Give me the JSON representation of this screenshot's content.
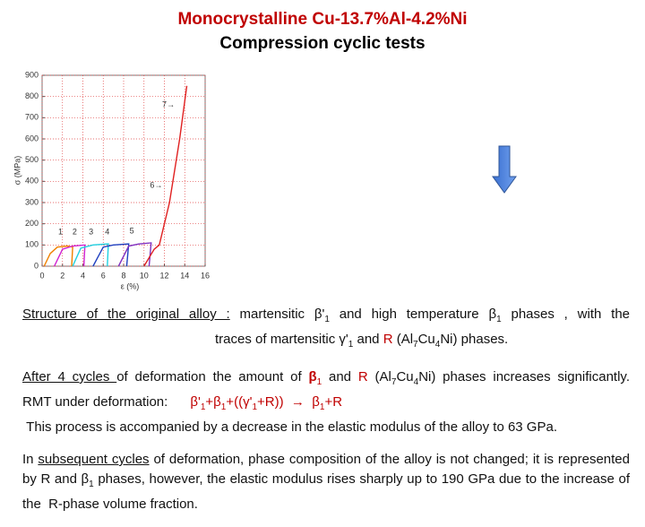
{
  "title": [
    "Monocrystalline Cu-13.7%Al-4.2%Ni",
    "Compression cyclic tests"
  ],
  "chart_data": {
    "type": "line",
    "xlabel": "ε (%)",
    "ylabel": "σ (MPa)",
    "xlim": [
      0,
      16
    ],
    "xticks": [
      0,
      2,
      4,
      6,
      8,
      10,
      12,
      14,
      16
    ],
    "ylim": [
      0,
      900
    ],
    "yticks": [
      0,
      100,
      200,
      300,
      400,
      500,
      600,
      700,
      800,
      900
    ],
    "grid": true,
    "grid_color": "#e04040",
    "series": [
      {
        "color": "#f08000",
        "x": [
          0.2,
          0.8,
          1.5,
          2.5,
          3.0,
          2.9
        ],
        "values": [
          0,
          60,
          90,
          95,
          90,
          0
        ]
      },
      {
        "color": "#d020d0",
        "x": [
          1.2,
          2.0,
          3.0,
          4.2,
          4.1
        ],
        "values": [
          0,
          80,
          95,
          100,
          0
        ]
      },
      {
        "color": "#20d0e0",
        "x": [
          3.0,
          3.8,
          5.0,
          6.5,
          6.4
        ],
        "values": [
          0,
          85,
          100,
          105,
          0
        ]
      },
      {
        "color": "#2040c0",
        "x": [
          5.0,
          6.0,
          7.0,
          8.5,
          8.3
        ],
        "values": [
          0,
          90,
          100,
          105,
          0
        ]
      },
      {
        "color": "#8030c0",
        "x": [
          7.5,
          8.5,
          9.5,
          10.7,
          10.5
        ],
        "values": [
          0,
          95,
          105,
          110,
          0
        ]
      },
      {
        "color": "#e02020",
        "x": [
          10.0,
          11.0,
          11.5,
          12.5,
          13.5,
          14.2
        ],
        "values": [
          0,
          80,
          100,
          300,
          600,
          850
        ]
      }
    ],
    "annotations": [
      {
        "text": "1",
        "x": 1.8,
        "y": 160
      },
      {
        "text": "2",
        "x": 3.2,
        "y": 160
      },
      {
        "text": "3",
        "x": 4.8,
        "y": 160
      },
      {
        "text": "4",
        "x": 6.4,
        "y": 160
      },
      {
        "text": "5",
        "x": 8.8,
        "y": 165
      },
      {
        "text": "6→",
        "x": 11.2,
        "y": 380
      },
      {
        "text": "7→",
        "x": 12.4,
        "y": 760
      }
    ]
  },
  "paragraphs": [
    [
      [
        {
          "text": "Structure of the original alloy :",
          "style": "u"
        },
        {
          "text": " martensitic β'"
        },
        {
          "text": "1",
          "style": "sub"
        },
        {
          "text": " and high temperature β"
        },
        {
          "text": "1",
          "style": "sub"
        },
        {
          "text": " phases , with the"
        }
      ],
      [
        {
          "text": "traces of martensitic γ'"
        },
        {
          "text": "1",
          "style": "sub"
        },
        {
          "text": " and "
        },
        {
          "text": "R",
          "style": "red"
        },
        {
          "text": " (Al"
        },
        {
          "text": "7",
          "style": "sub"
        },
        {
          "text": "Cu"
        },
        {
          "text": "4",
          "style": "sub"
        },
        {
          "text": "Ni) phases."
        }
      ]
    ],
    [
      [
        {
          "text": "After 4 cycles ",
          "style": "u"
        },
        {
          "text": "of deformation the amount of "
        },
        {
          "text": "β",
          "style": "red b"
        },
        {
          "text": "1",
          "style": "red sub"
        },
        {
          "text": " and "
        },
        {
          "text": "R",
          "style": "red"
        },
        {
          "text": " (Al"
        },
        {
          "text": "7",
          "style": "sub"
        },
        {
          "text": "Cu"
        },
        {
          "text": "4",
          "style": "sub"
        },
        {
          "text": "Ni) phases increases significantly."
        }
      ],
      [
        {
          "text": "RMT under deformation:      "
        },
        {
          "text": "β'",
          "style": "red"
        },
        {
          "text": "1",
          "style": "red sub"
        },
        {
          "text": "+β",
          "style": "red"
        },
        {
          "text": "1",
          "style": "red sub"
        },
        {
          "text": "+((γ'",
          "style": "red"
        },
        {
          "text": "1",
          "style": "red sub"
        },
        {
          "text": "+R))  →  β",
          "style": "red"
        },
        {
          "text": "1",
          "style": "red sub"
        },
        {
          "text": "+R",
          "style": "red"
        }
      ],
      [
        {
          "text": " This process is accompanied by a decrease in the elastic modulus of the alloy to 63 GPa."
        }
      ]
    ],
    [
      [
        {
          "text": "In "
        },
        {
          "text": "subsequent cycles",
          "style": "u"
        },
        {
          "text": " of deformation, phase composition of the alloy is not changed; it is represented by R and β"
        },
        {
          "text": "1",
          "style": "sub"
        },
        {
          "text": " phases, however, the elastic modulus rises sharply up to 190 GPa due to the increase of the  R-phase volume fraction."
        }
      ]
    ]
  ]
}
